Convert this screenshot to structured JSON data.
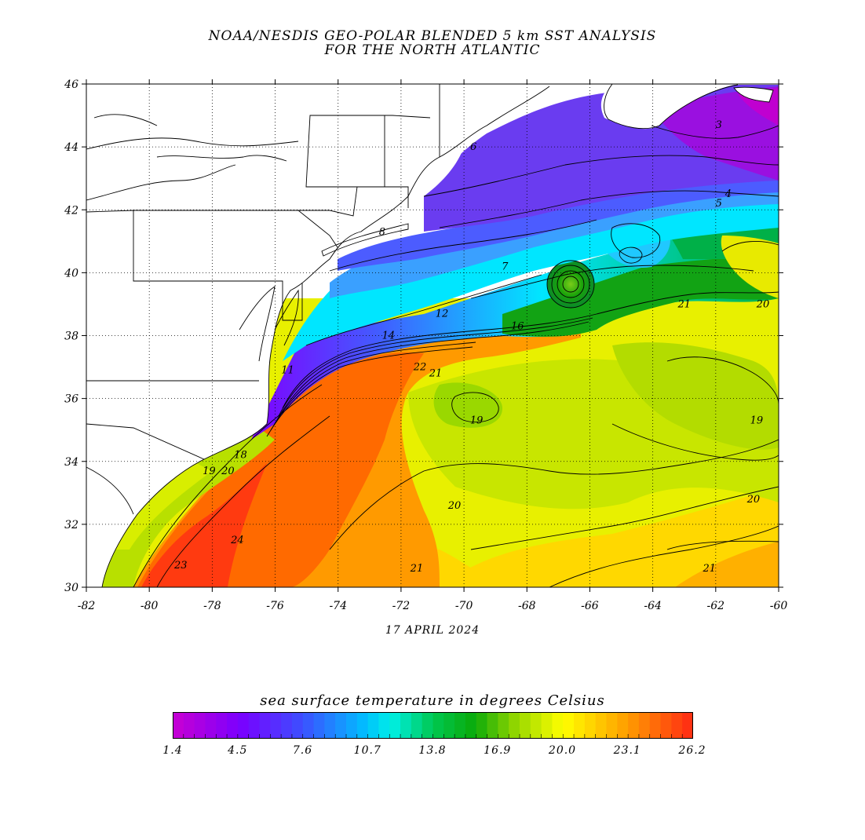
{
  "title_line1": "NOAA/NESDIS GEO-POLAR BLENDED 5 km SST ANALYSIS",
  "title_line2": "FOR THE NORTH ATLANTIC",
  "date": "17 APRIL 2024",
  "colorbar": {
    "title": "sea surface temperature in degrees Celsius",
    "labels": [
      "1.4",
      "4.5",
      "7.6",
      "10.7",
      "13.8",
      "16.9",
      "20.0",
      "23.1",
      "26.2"
    ],
    "min": 1.4,
    "max": 26.2
  },
  "axes": {
    "lon_ticks": [
      "-82",
      "-80",
      "-78",
      "-76",
      "-74",
      "-72",
      "-70",
      "-68",
      "-66",
      "-64",
      "-62",
      "-60"
    ],
    "lat_ticks": [
      "30",
      "32",
      "34",
      "36",
      "38",
      "40",
      "42",
      "44",
      "46"
    ],
    "lon_range": [
      -82,
      -60
    ],
    "lat_range": [
      30,
      46
    ],
    "grid": "dotted"
  },
  "contour_labels": [
    {
      "text": "3",
      "lon": -61.9,
      "lat": 44.6
    },
    {
      "text": "4",
      "lon": -61.6,
      "lat": 42.4
    },
    {
      "text": "5",
      "lon": -61.9,
      "lat": 42.1
    },
    {
      "text": "6",
      "lon": -69.7,
      "lat": 43.9
    },
    {
      "text": "8",
      "lon": -72.6,
      "lat": 41.2
    },
    {
      "text": "7",
      "lon": -68.7,
      "lat": 40.1
    },
    {
      "text": "11",
      "lon": -75.6,
      "lat": 36.8
    },
    {
      "text": "12",
      "lon": -70.7,
      "lat": 38.6
    },
    {
      "text": "14",
      "lon": -72.4,
      "lat": 37.9
    },
    {
      "text": "16",
      "lon": -68.3,
      "lat": 38.2
    },
    {
      "text": "18",
      "lon": -77.1,
      "lat": 34.1
    },
    {
      "text": "19",
      "lon": -78.1,
      "lat": 33.6
    },
    {
      "text": "20",
      "lon": -77.5,
      "lat": 33.6
    },
    {
      "text": "21",
      "lon": -70.9,
      "lat": 36.7
    },
    {
      "text": "22",
      "lon": -71.4,
      "lat": 36.9
    },
    {
      "text": "19",
      "lon": -69.6,
      "lat": 35.2
    },
    {
      "text": "20",
      "lon": -70.3,
      "lat": 32.5
    },
    {
      "text": "21",
      "lon": -71.5,
      "lat": 30.5
    },
    {
      "text": "21",
      "lon": -63.0,
      "lat": 38.9
    },
    {
      "text": "20",
      "lon": -60.5,
      "lat": 38.9
    },
    {
      "text": "19",
      "lon": -60.7,
      "lat": 35.2
    },
    {
      "text": "20",
      "lon": -60.8,
      "lat": 32.7
    },
    {
      "text": "21",
      "lon": -62.2,
      "lat": 30.5
    },
    {
      "text": "23",
      "lon": -79.0,
      "lat": 30.6
    },
    {
      "text": "24",
      "lon": -77.2,
      "lat": 31.4
    }
  ]
}
